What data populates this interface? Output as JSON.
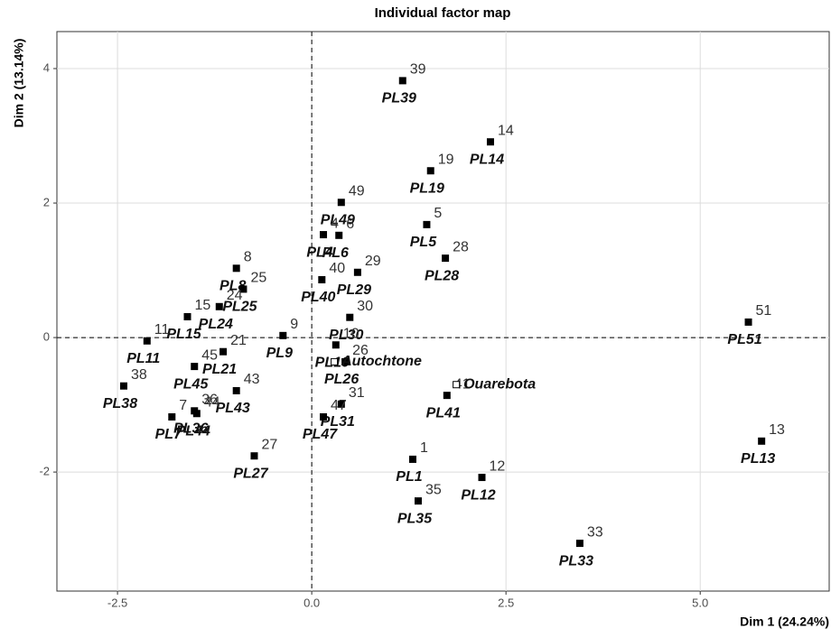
{
  "chart_data": {
    "type": "scatter",
    "title": "Individual factor map",
    "xlabel": "Dim 1 (24.24%)",
    "ylabel": "Dim 2 (13.14%)",
    "xlim": [
      -3.28,
      6.66
    ],
    "ylim": [
      -3.77,
      4.55
    ],
    "xticks": [
      -2.5,
      {
        "value": 0,
        "label": "0.0"
      },
      2.5,
      {
        "value": 5,
        "label": "5.0"
      }
    ],
    "yticks": [
      -2,
      0,
      2,
      4
    ],
    "grid": true,
    "series": [
      {
        "color": "#000000",
        "labels": [
          "PL39",
          "PL14",
          "PL19",
          "PL49",
          "PL5",
          "PL4",
          "PL6",
          "PL28",
          "PL8",
          "PL29",
          "PL40",
          "PL25",
          "PL30",
          "PL15",
          "PL24",
          "PL51",
          "PL11",
          "PL10",
          "PL9",
          "PL21",
          "PL26",
          "PL45",
          "PL38",
          "PL43",
          "PL31",
          "PL41",
          "PL36",
          "PL7",
          "PL44",
          "PL47",
          "PL1",
          "PL12",
          "PL35",
          "PL27",
          "PL33",
          "PL13"
        ],
        "numbers": [
          "39",
          "14",
          "19",
          "49",
          "5",
          "4",
          "6",
          "28",
          "8",
          "29",
          "40",
          "25",
          "30",
          "15",
          "24",
          "51",
          "11",
          "10",
          "9",
          "21",
          "26",
          "45",
          "38",
          "43",
          "31",
          "41",
          "36",
          "7",
          "44",
          "47",
          "1",
          "12",
          "35",
          "27",
          "33",
          "13"
        ],
        "x": [
          1.17,
          2.3,
          1.53,
          0.38,
          1.48,
          0.15,
          0.35,
          1.72,
          -0.97,
          0.59,
          0.13,
          -0.88,
          0.49,
          -1.6,
          -1.19,
          5.62,
          -2.12,
          0.31,
          -0.37,
          -1.14,
          0.43,
          -1.51,
          -2.42,
          -0.97,
          0.38,
          1.74,
          -1.51,
          -1.8,
          -1.48,
          0.15,
          1.3,
          2.19,
          1.37,
          -0.74,
          3.45,
          5.79
        ],
        "values": [
          3.82,
          2.91,
          2.48,
          2.01,
          1.68,
          1.53,
          1.52,
          1.18,
          1.03,
          0.97,
          0.86,
          0.72,
          0.3,
          0.31,
          0.46,
          0.23,
          -0.05,
          -0.11,
          0.03,
          -0.21,
          -0.36,
          -0.43,
          -0.72,
          -0.79,
          -0.99,
          -0.86,
          -1.09,
          -1.18,
          -1.13,
          -1.18,
          -1.81,
          -2.08,
          -2.43,
          -1.76,
          -3.06,
          -1.54
        ]
      },
      {
        "color": "#000000",
        "hollow": true,
        "labels": [
          "Autochtone",
          "Ouarebota"
        ],
        "x": [
          0.29,
          1.86
        ],
        "values": [
          -0.36,
          -0.7
        ]
      }
    ]
  }
}
